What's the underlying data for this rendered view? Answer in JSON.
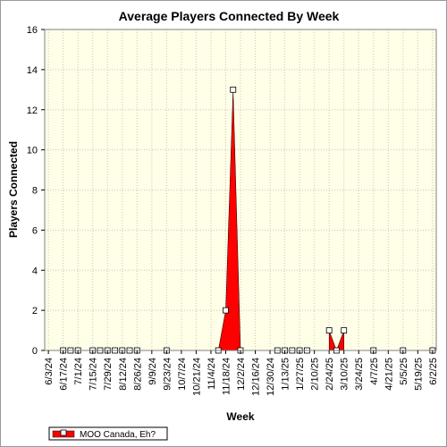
{
  "chart_data": {
    "type": "area",
    "title": "Average Players Connected By Week",
    "xlabel": "Week",
    "ylabel": "Players Connected",
    "ylim": [
      0,
      16
    ],
    "yticks": [
      0,
      2,
      4,
      6,
      8,
      10,
      12,
      14,
      16
    ],
    "grid": true,
    "legend_position": "bottom-left",
    "x_tick_labels": [
      "6/3/24",
      "6/17/24",
      "7/1/24",
      "7/15/24",
      "7/29/24",
      "8/12/24",
      "8/26/24",
      "9/9/24",
      "9/23/24",
      "10/7/24",
      "10/21/24",
      "11/4/24",
      "11/18/24",
      "12/2/24",
      "12/16/24",
      "12/30/24",
      "1/13/25",
      "1/27/25",
      "2/10/25",
      "2/24/25",
      "3/10/25",
      "3/24/25",
      "4/7/25",
      "4/21/25",
      "5/5/25",
      "5/19/25",
      "6/2/25"
    ],
    "x": [
      "6/3/24",
      "6/10/24",
      "6/17/24",
      "6/24/24",
      "7/1/24",
      "7/8/24",
      "7/15/24",
      "7/22/24",
      "7/29/24",
      "8/5/24",
      "8/12/24",
      "8/19/24",
      "8/26/24",
      "9/2/24",
      "9/9/24",
      "9/16/24",
      "9/23/24",
      "9/30/24",
      "10/7/24",
      "10/14/24",
      "10/21/24",
      "10/28/24",
      "11/4/24",
      "11/11/24",
      "11/18/24",
      "11/25/24",
      "12/2/24",
      "12/9/24",
      "12/16/24",
      "12/23/24",
      "12/30/24",
      "1/6/25",
      "1/13/25",
      "1/20/25",
      "1/27/25",
      "2/3/25",
      "2/10/25",
      "2/17/25",
      "2/24/25",
      "3/3/25",
      "3/10/25",
      "3/17/25",
      "3/24/25",
      "3/31/25",
      "4/7/25",
      "4/14/25",
      "4/21/25",
      "4/28/25",
      "5/5/25",
      "5/12/25",
      "5/19/25",
      "5/26/25",
      "6/2/25"
    ],
    "series": [
      {
        "name": "MOO Canada, Eh?",
        "color": "#ff0000",
        "values": [
          null,
          null,
          0,
          0,
          0,
          null,
          0,
          0,
          0,
          0,
          0,
          0,
          0,
          null,
          null,
          null,
          0,
          null,
          null,
          null,
          null,
          null,
          null,
          0,
          2,
          13,
          0,
          null,
          null,
          null,
          null,
          0,
          0,
          0,
          0,
          0,
          null,
          null,
          1,
          0,
          1,
          null,
          null,
          null,
          0,
          null,
          null,
          null,
          0,
          null,
          null,
          null,
          0
        ]
      }
    ]
  }
}
